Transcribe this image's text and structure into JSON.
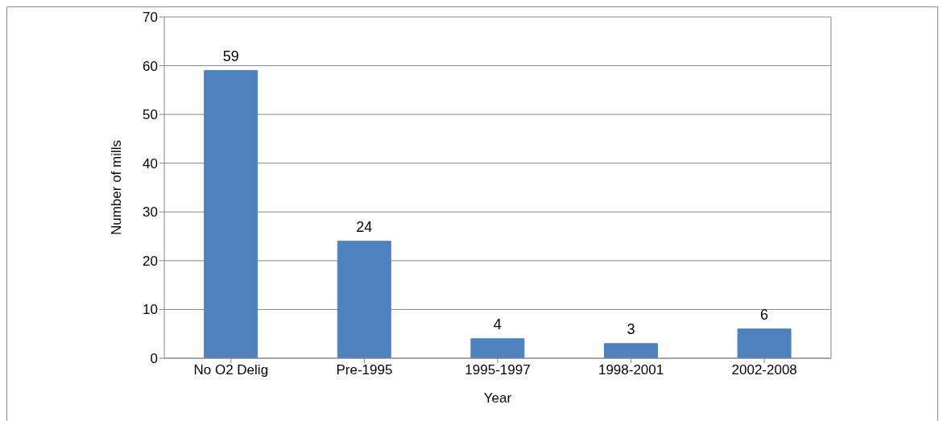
{
  "chart_data": {
    "type": "bar",
    "xlabel": "Year",
    "ylabel": "Number of mills",
    "categories": [
      "No O2 Delig",
      "Pre-1995",
      "1995-1997",
      "1998-2001",
      "2002-2008"
    ],
    "values": [
      59,
      24,
      4,
      3,
      6
    ],
    "color": "#4f81bd",
    "ylim": [
      0,
      70
    ],
    "yticks": [
      0,
      10,
      20,
      30,
      40,
      50,
      60,
      70
    ],
    "grid": "y",
    "data_labels": true
  }
}
